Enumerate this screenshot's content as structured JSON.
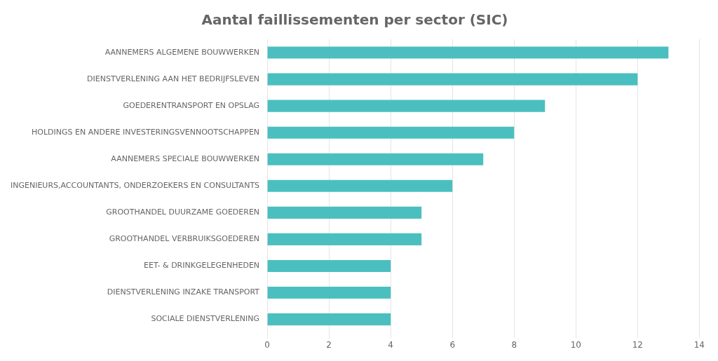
{
  "chart_data": {
    "type": "bar",
    "orientation": "horizontal",
    "title": "Aantal faillissementen per sector (SIC)",
    "categories": [
      "SOCIALE DIENSTVERLENING",
      "DIENSTVERLENING INZAKE TRANSPORT",
      "EET- & DRINKGELEGENHEDEN",
      "GROOTHANDEL VERBRUIKSGOEDEREN",
      "GROOTHANDEL DUURZAME GOEDEREN",
      "INGENIEURS,ACCOUNTANTS, ONDERZOEKERS EN CONSULTANTS",
      "AANNEMERS SPECIALE BOUWWERKEN",
      "HOLDINGS EN ANDERE INVESTERINGSVENNOOTSCHAPPEN",
      "GOEDERENTRANSPORT EN OPSLAG",
      "DIENSTVERLENING AAN HET BEDRIJFSLEVEN",
      "AANNEMERS ALGEMENE BOUWWERKEN"
    ],
    "values": [
      4,
      4,
      4,
      5,
      5,
      6,
      7,
      8,
      9,
      12,
      13
    ],
    "color": "#4BBFBF",
    "xlim": [
      0,
      14
    ],
    "xticks": [
      0,
      2,
      4,
      6,
      8,
      10,
      12,
      14
    ],
    "grid": true
  }
}
